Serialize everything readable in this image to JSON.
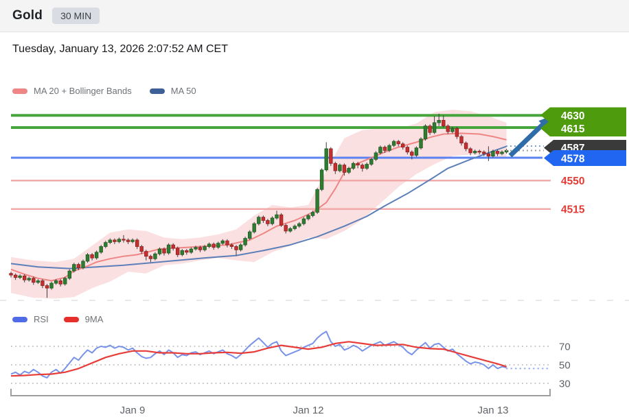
{
  "header": {
    "title": "Gold",
    "timeframe": "30 MIN",
    "datetime": "Tuesday, January 13, 2026 2:07:52 AM CET"
  },
  "legend": {
    "ma20_bb": "MA 20 + Bollinger Bands",
    "ma50": "MA 50"
  },
  "rsi_legend": {
    "rsi": "RSI",
    "ma9": "9MA"
  },
  "levels": [
    {
      "value": 4630,
      "label": "4630",
      "kind": "resistance",
      "display": "green-badge"
    },
    {
      "value": 4615,
      "label": "4615",
      "kind": "resistance",
      "display": "green-badge"
    },
    {
      "value": 4587,
      "label": "4587",
      "kind": "last-price",
      "display": "dark-badge"
    },
    {
      "value": 4578,
      "label": "4578",
      "kind": "support",
      "display": "blue-badge"
    },
    {
      "value": 4550,
      "label": "4550",
      "kind": "support",
      "display": "red-text"
    },
    {
      "value": 4515,
      "label": "4515",
      "kind": "support",
      "display": "red-text"
    }
  ],
  "annotation": {
    "type": "arrow",
    "direction": "up-right",
    "meaning": "projected move from current price toward 4615-4630 resistance zone"
  },
  "colors": {
    "candle_up": "#2e7d32",
    "candle_up_border": "#1d5a21",
    "candle_down": "#c42f2f",
    "candle_down_border": "#8e2020",
    "wick": "#3c3c3c",
    "ma20": "#ef8585",
    "ma50": "#5b7fb9",
    "bollinger_fill": "#f2b4b4",
    "level_green": "#46a53c",
    "level_blue": "#5b82f0",
    "level_pink": "#f2a6a6",
    "badge_green": "#4e9c0e",
    "badge_blue": "#2166f0",
    "badge_dark": "#3a3a3a",
    "red_label": "#e23b36",
    "rsi_line": "#7792e8",
    "ma9_line": "#e83c38",
    "arrow": "#2e6da8",
    "axis_text": "#5f6368",
    "grid_dot": "#b3b3b3",
    "bracket": "#9e9e9e"
  },
  "chart_data": [
    {
      "type": "candlestick",
      "panel": "price",
      "title": "Gold 30-minute candles with MA20+Bollinger Bands and MA50",
      "ylim": [
        4404,
        4646
      ],
      "x_ticks": [
        {
          "label": "Jan 9",
          "index": 27
        },
        {
          "label": "Jan 12",
          "index": 66
        },
        {
          "label": "Jan 13",
          "index": 107
        }
      ],
      "candles_ohlc": [
        [
          4436,
          4438,
          4431,
          4434
        ],
        [
          4434,
          4436,
          4428,
          4431
        ],
        [
          4431,
          4435,
          4429,
          4433
        ],
        [
          4433,
          4435,
          4425,
          4428
        ],
        [
          4428,
          4432,
          4426,
          4430
        ],
        [
          4430,
          4432,
          4422,
          4425
        ],
        [
          4425,
          4429,
          4423,
          4427
        ],
        [
          4427,
          4429,
          4418,
          4421
        ],
        [
          4421,
          4423,
          4406,
          4418
        ],
        [
          4418,
          4426,
          4416,
          4424
        ],
        [
          4424,
          4429,
          4422,
          4427
        ],
        [
          4427,
          4429,
          4420,
          4423
        ],
        [
          4423,
          4432,
          4421,
          4430
        ],
        [
          4430,
          4441,
          4428,
          4439
        ],
        [
          4439,
          4449,
          4437,
          4447
        ],
        [
          4447,
          4449,
          4440,
          4443
        ],
        [
          4443,
          4453,
          4441,
          4451
        ],
        [
          4451,
          4461,
          4449,
          4459
        ],
        [
          4459,
          4461,
          4452,
          4455
        ],
        [
          4455,
          4464,
          4453,
          4462
        ],
        [
          4462,
          4471,
          4460,
          4469
        ],
        [
          4469,
          4476,
          4467,
          4474
        ],
        [
          4474,
          4479,
          4472,
          4477
        ],
        [
          4477,
          4479,
          4472,
          4475
        ],
        [
          4475,
          4480,
          4473,
          4478
        ],
        [
          4478,
          4483,
          4474,
          4477
        ],
        [
          4477,
          4479,
          4472,
          4475
        ],
        [
          4475,
          4479,
          4473,
          4477
        ],
        [
          4477,
          4479,
          4466,
          4469
        ],
        [
          4469,
          4471,
          4460,
          4463
        ],
        [
          4463,
          4465,
          4452,
          4457
        ],
        [
          4457,
          4459,
          4450,
          4454
        ],
        [
          4454,
          4462,
          4452,
          4460
        ],
        [
          4460,
          4468,
          4458,
          4466
        ],
        [
          4466,
          4468,
          4458,
          4461
        ],
        [
          4461,
          4473,
          4459,
          4471
        ],
        [
          4471,
          4473,
          4464,
          4467
        ],
        [
          4467,
          4469,
          4456,
          4459
        ],
        [
          4459,
          4466,
          4457,
          4464
        ],
        [
          4464,
          4466,
          4459,
          4462
        ],
        [
          4462,
          4468,
          4460,
          4466
        ],
        [
          4466,
          4470,
          4464,
          4468
        ],
        [
          4468,
          4470,
          4462,
          4465
        ],
        [
          4465,
          4471,
          4463,
          4469
        ],
        [
          4469,
          4474,
          4467,
          4472
        ],
        [
          4472,
          4474,
          4465,
          4468
        ],
        [
          4468,
          4475,
          4466,
          4473
        ],
        [
          4473,
          4478,
          4471,
          4476
        ],
        [
          4476,
          4478,
          4468,
          4471
        ],
        [
          4471,
          4473,
          4466,
          4469
        ],
        [
          4469,
          4471,
          4458,
          4465
        ],
        [
          4465,
          4473,
          4463,
          4471
        ],
        [
          4471,
          4481,
          4469,
          4479
        ],
        [
          4479,
          4489,
          4477,
          4487
        ],
        [
          4487,
          4499,
          4485,
          4497
        ],
        [
          4497,
          4507,
          4495,
          4505
        ],
        [
          4505,
          4507,
          4498,
          4501
        ],
        [
          4501,
          4503,
          4494,
          4497
        ],
        [
          4497,
          4506,
          4495,
          4504
        ],
        [
          4504,
          4513,
          4502,
          4508
        ],
        [
          4508,
          4510,
          4493,
          4495
        ],
        [
          4495,
          4497,
          4485,
          4488
        ],
        [
          4488,
          4493,
          4486,
          4491
        ],
        [
          4491,
          4496,
          4489,
          4494
        ],
        [
          4494,
          4499,
          4492,
          4497
        ],
        [
          4497,
          4505,
          4495,
          4503
        ],
        [
          4503,
          4509,
          4501,
          4507
        ],
        [
          4507,
          4513,
          4505,
          4511
        ],
        [
          4511,
          4541,
          4509,
          4539
        ],
        [
          4539,
          4565,
          4537,
          4563
        ],
        [
          4563,
          4597,
          4561,
          4589
        ],
        [
          4589,
          4591,
          4568,
          4571
        ],
        [
          4571,
          4573,
          4558,
          4562
        ],
        [
          4562,
          4571,
          4560,
          4569
        ],
        [
          4569,
          4571,
          4556,
          4560
        ],
        [
          4560,
          4567,
          4558,
          4565
        ],
        [
          4565,
          4573,
          4563,
          4571
        ],
        [
          4571,
          4573,
          4565,
          4569
        ],
        [
          4569,
          4571,
          4561,
          4565
        ],
        [
          4565,
          4572,
          4563,
          4570
        ],
        [
          4570,
          4578,
          4568,
          4576
        ],
        [
          4576,
          4586,
          4574,
          4584
        ],
        [
          4584,
          4593,
          4582,
          4591
        ],
        [
          4591,
          4593,
          4584,
          4587
        ],
        [
          4587,
          4595,
          4585,
          4593
        ],
        [
          4593,
          4600,
          4591,
          4598
        ],
        [
          4598,
          4600,
          4592,
          4595
        ],
        [
          4595,
          4597,
          4588,
          4591
        ],
        [
          4591,
          4593,
          4582,
          4585
        ],
        [
          4585,
          4587,
          4576,
          4581
        ],
        [
          4581,
          4592,
          4579,
          4590
        ],
        [
          4590,
          4603,
          4588,
          4601
        ],
        [
          4601,
          4619,
          4599,
          4617
        ],
        [
          4617,
          4619,
          4606,
          4609
        ],
        [
          4609,
          4629,
          4607,
          4621
        ],
        [
          4621,
          4632,
          4617,
          4624
        ],
        [
          4624,
          4630,
          4615,
          4617
        ],
        [
          4617,
          4619,
          4607,
          4610
        ],
        [
          4610,
          4616,
          4608,
          4614
        ],
        [
          4614,
          4616,
          4601,
          4604
        ],
        [
          4604,
          4606,
          4593,
          4596
        ],
        [
          4596,
          4598,
          4586,
          4589
        ],
        [
          4589,
          4591,
          4581,
          4584
        ],
        [
          4584,
          4588,
          4582,
          4586
        ],
        [
          4586,
          4588,
          4582,
          4585
        ],
        [
          4585,
          4587,
          4580,
          4583
        ],
        [
          4583,
          4592,
          4574,
          4580
        ],
        [
          4580,
          4588,
          4578,
          4586
        ],
        [
          4586,
          4588,
          4580,
          4583
        ],
        [
          4583,
          4587,
          4581,
          4585
        ],
        [
          4585,
          4589,
          4583,
          4587
        ]
      ],
      "ma20_points": [
        [
          0,
          4441
        ],
        [
          3,
          4435
        ],
        [
          6,
          4430
        ],
        [
          9,
          4427
        ],
        [
          12,
          4431
        ],
        [
          14,
          4439
        ],
        [
          17,
          4445
        ],
        [
          19,
          4450
        ],
        [
          22,
          4454
        ],
        [
          25,
          4457
        ],
        [
          28,
          4459
        ],
        [
          33,
          4466
        ],
        [
          39,
          4468
        ],
        [
          45,
          4470
        ],
        [
          48,
          4471
        ],
        [
          53,
          4477
        ],
        [
          56,
          4485
        ],
        [
          59,
          4494
        ],
        [
          63,
          4501
        ],
        [
          67,
          4511
        ],
        [
          70,
          4523
        ],
        [
          72,
          4540
        ],
        [
          74,
          4560
        ],
        [
          77,
          4571
        ],
        [
          80,
          4578
        ],
        [
          83,
          4585
        ],
        [
          86,
          4591
        ],
        [
          90,
          4597
        ],
        [
          93,
          4603
        ],
        [
          96,
          4607
        ],
        [
          100,
          4608
        ],
        [
          104,
          4607
        ],
        [
          107,
          4604
        ],
        [
          110,
          4600
        ]
      ],
      "ma50_points": [
        [
          0,
          4448
        ],
        [
          6,
          4444
        ],
        [
          13,
          4442
        ],
        [
          19,
          4444
        ],
        [
          25,
          4446
        ],
        [
          31,
          4449
        ],
        [
          37,
          4452
        ],
        [
          43,
          4455
        ],
        [
          50,
          4458
        ],
        [
          56,
          4464
        ],
        [
          62,
          4471
        ],
        [
          68,
          4481
        ],
        [
          74,
          4494
        ],
        [
          79,
          4506
        ],
        [
          83,
          4519
        ],
        [
          88,
          4534
        ],
        [
          93,
          4551
        ],
        [
          97,
          4565
        ],
        [
          102,
          4576
        ],
        [
          105,
          4582
        ],
        [
          108,
          4588
        ],
        [
          110,
          4592
        ]
      ],
      "bollinger_points": [
        [
          0,
          4456,
          4412
        ],
        [
          5,
          4452,
          4406
        ],
        [
          10,
          4450,
          4405
        ],
        [
          14,
          4454,
          4407
        ],
        [
          18,
          4470,
          4418
        ],
        [
          22,
          4486,
          4426
        ],
        [
          26,
          4490,
          4438
        ],
        [
          30,
          4488,
          4436
        ],
        [
          34,
          4480,
          4446
        ],
        [
          38,
          4478,
          4448
        ],
        [
          42,
          4480,
          4452
        ],
        [
          46,
          4484,
          4455
        ],
        [
          50,
          4490,
          4452
        ],
        [
          54,
          4507,
          4450
        ],
        [
          58,
          4520,
          4462
        ],
        [
          62,
          4517,
          4470
        ],
        [
          66,
          4520,
          4480
        ],
        [
          70,
          4562,
          4478
        ],
        [
          74,
          4602,
          4488
        ],
        [
          78,
          4612,
          4502
        ],
        [
          82,
          4614,
          4522
        ],
        [
          86,
          4614,
          4542
        ],
        [
          90,
          4620,
          4558
        ],
        [
          94,
          4634,
          4570
        ],
        [
          98,
          4637,
          4580
        ],
        [
          102,
          4635,
          4582
        ],
        [
          106,
          4629,
          4580
        ],
        [
          110,
          4621,
          4578
        ]
      ],
      "last_price": 4587
    },
    {
      "type": "line",
      "panel": "rsi",
      "title": "RSI with 9MA",
      "ylim": [
        20,
        92
      ],
      "gridlines": [
        70,
        50,
        30
      ],
      "rsi_values": [
        40,
        42,
        39,
        43,
        41,
        45,
        42,
        38,
        36,
        42,
        45,
        41,
        46,
        52,
        58,
        55,
        61,
        66,
        63,
        68,
        70,
        69,
        71,
        68,
        70,
        69,
        66,
        68,
        63,
        59,
        57,
        58,
        62,
        65,
        61,
        66,
        63,
        58,
        61,
        60,
        63,
        64,
        61,
        63,
        65,
        62,
        64,
        66,
        62,
        60,
        57,
        61,
        66,
        71,
        75,
        79,
        74,
        69,
        73,
        75,
        65,
        60,
        62,
        64,
        66,
        69,
        71,
        73,
        79,
        83,
        86,
        75,
        70,
        72,
        66,
        68,
        71,
        69,
        65,
        68,
        71,
        73,
        75,
        71,
        73,
        75,
        72,
        69,
        64,
        61,
        66,
        70,
        74,
        68,
        72,
        73,
        69,
        65,
        67,
        62,
        58,
        54,
        51,
        53,
        52,
        50,
        46,
        50,
        46,
        48,
        47
      ],
      "ma9_points": [
        [
          0,
          38
        ],
        [
          3,
          38.5
        ],
        [
          6,
          39.5
        ],
        [
          9,
          40
        ],
        [
          12,
          42
        ],
        [
          15,
          46
        ],
        [
          18,
          52
        ],
        [
          21,
          58
        ],
        [
          24,
          62
        ],
        [
          27,
          65
        ],
        [
          30,
          65
        ],
        [
          33,
          63
        ],
        [
          36,
          63
        ],
        [
          39,
          62
        ],
        [
          42,
          62
        ],
        [
          45,
          63
        ],
        [
          48,
          63.5
        ],
        [
          51,
          62.5
        ],
        [
          54,
          64
        ],
        [
          57,
          68
        ],
        [
          60,
          71
        ],
        [
          63,
          69
        ],
        [
          66,
          67
        ],
        [
          69,
          69
        ],
        [
          72,
          73
        ],
        [
          75,
          75
        ],
        [
          78,
          73
        ],
        [
          81,
          71
        ],
        [
          84,
          71.5
        ],
        [
          87,
          72
        ],
        [
          90,
          69
        ],
        [
          93,
          67.5
        ],
        [
          96,
          67
        ],
        [
          99,
          63
        ],
        [
          102,
          59
        ],
        [
          105,
          55
        ],
        [
          108,
          51
        ],
        [
          110,
          48
        ]
      ],
      "rsi_last_extension": 46
    }
  ]
}
